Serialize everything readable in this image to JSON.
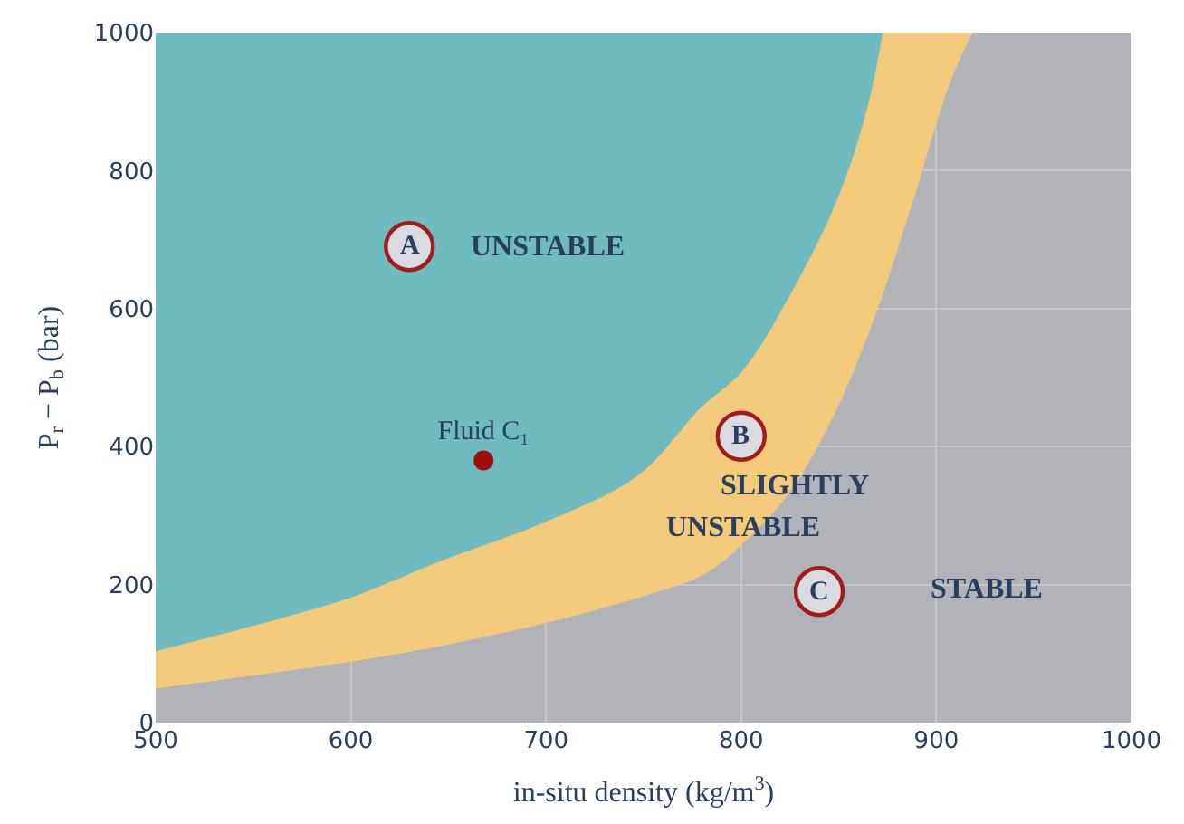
{
  "chart_data": {
    "type": "area",
    "xlabel": "in-situ density (kg/m$^{3}$)",
    "ylabel": "P$_{r}$ − P$_{b}$ (bar)",
    "xlim": [
      500,
      1000
    ],
    "xticks": [
      500,
      600,
      700,
      800,
      900,
      1000
    ],
    "ylim": [
      0,
      1000
    ],
    "yticks": [
      0,
      200,
      400,
      600,
      800,
      1000
    ],
    "grid": true,
    "legend": false,
    "series": [
      {
        "color": "#70bbc0",
        "x": [
          500,
          550,
          600,
          647,
          700,
          747,
          779,
          800,
          825,
          849,
          864,
          872
        ],
        "values": [
          105,
          142,
          183,
          237,
          293,
          360,
          458,
          510,
          623,
          761,
          891,
          1000
        ]
      },
      {
        "color": "#f3c97b",
        "x": [
          500,
          550,
          600,
          650,
          700,
          750,
          780,
          800,
          825,
          849,
          870,
          888,
          906,
          918
        ],
        "values": [
          51,
          70,
          90,
          115,
          146,
          185,
          215,
          259,
          337,
          458,
          605,
          761,
          925,
          1000
        ]
      },
      {
        "type": "scatter",
        "name": "Fluid C₁",
        "color": "#a00d0d",
        "x": [
          668
        ],
        "values": [
          380
        ]
      }
    ],
    "annotations": [
      "A",
      "UNSTABLE",
      "B",
      "SLIGHTLY",
      "UNSTABLE",
      "C",
      "STABLE"
    ]
  }
}
